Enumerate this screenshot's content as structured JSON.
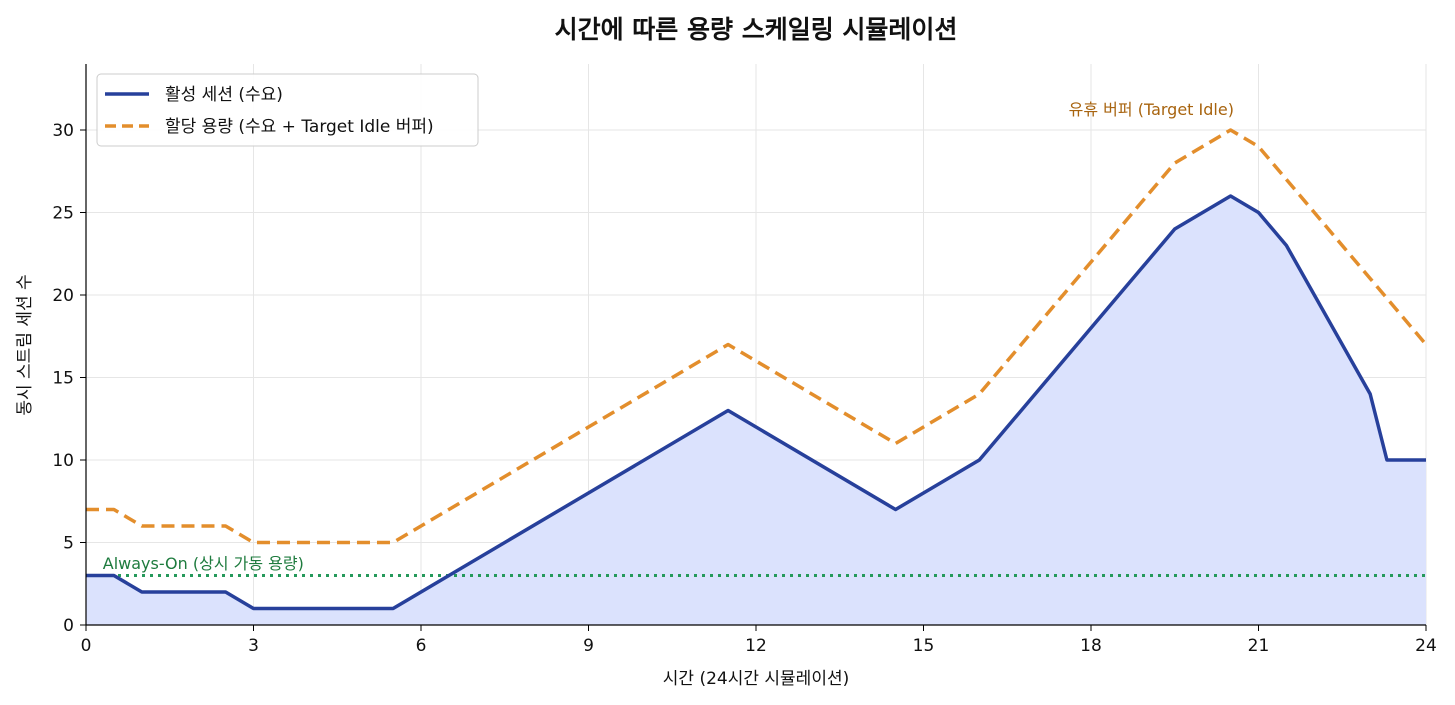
{
  "chart_data": {
    "type": "line",
    "title": "시간에 따른 용량 스케일링 시뮬레이션",
    "xlabel": "시간 (24시간 시뮬레이션)",
    "ylabel": "동시 스트림 세션 수",
    "xlim": [
      0,
      24
    ],
    "ylim": [
      0,
      34
    ],
    "xticks": [
      0,
      3,
      6,
      9,
      12,
      15,
      18,
      21,
      24
    ],
    "yticks": [
      0,
      5,
      10,
      15,
      20,
      25,
      30
    ],
    "grid": true,
    "legend_position": "top-left",
    "series": [
      {
        "name": "활성 세션 (수요)",
        "style": "solid",
        "color": "#27409b",
        "fill_color": "#dbe2fd",
        "points": [
          [
            0,
            3
          ],
          [
            0.5,
            3
          ],
          [
            1,
            2
          ],
          [
            2.5,
            2
          ],
          [
            3,
            1
          ],
          [
            5.5,
            1
          ],
          [
            6.5,
            3
          ],
          [
            9,
            8
          ],
          [
            11.5,
            13
          ],
          [
            14.5,
            7
          ],
          [
            16,
            10
          ],
          [
            19.5,
            24
          ],
          [
            20.5,
            26
          ],
          [
            21,
            25
          ],
          [
            21.5,
            23
          ],
          [
            23,
            14
          ],
          [
            23.3,
            10
          ],
          [
            24,
            10
          ]
        ]
      },
      {
        "name": "할당 용량 (수요 + Target Idle 버퍼)",
        "style": "dashed",
        "color": "#e38e2c",
        "points": [
          [
            0,
            7
          ],
          [
            0.5,
            7
          ],
          [
            1,
            6
          ],
          [
            2.5,
            6
          ],
          [
            3,
            5
          ],
          [
            5.5,
            5
          ],
          [
            6.5,
            7
          ],
          [
            9,
            12
          ],
          [
            11.5,
            17
          ],
          [
            14.5,
            11
          ],
          [
            16,
            14
          ],
          [
            19.5,
            28
          ],
          [
            20.5,
            30
          ],
          [
            21,
            29
          ],
          [
            21.5,
            27
          ],
          [
            23,
            21
          ],
          [
            24,
            17
          ]
        ]
      }
    ],
    "reference_line": {
      "y": 3,
      "style": "dotted",
      "color": "#25995b"
    },
    "annotations": [
      {
        "text": "Always-On (상시 가동 용량)",
        "x": 0.3,
        "y": 3.4,
        "color": "#1e7b3e"
      },
      {
        "text": "유휴 버퍼 (Target Idle)",
        "x": 17.6,
        "y": 30.9,
        "color": "#a8640f"
      }
    ]
  }
}
